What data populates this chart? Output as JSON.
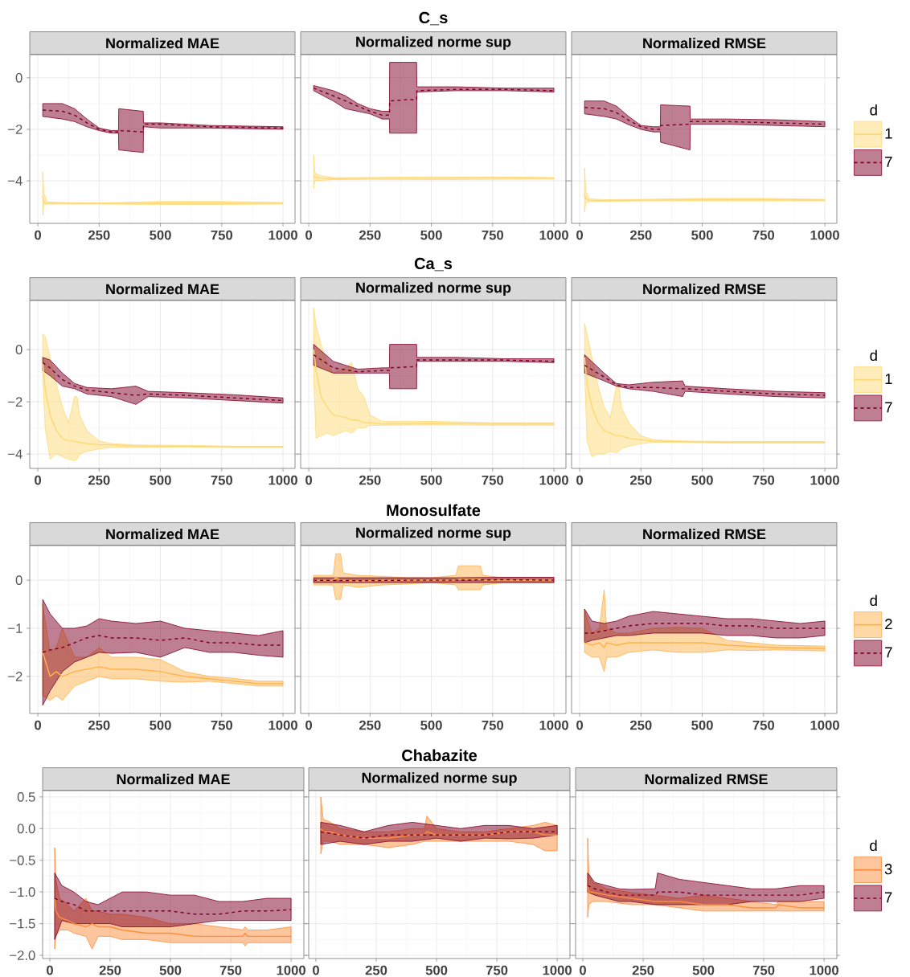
{
  "chart_data": [
    {
      "type": "line",
      "subtitle": "Normalized MAE",
      "xlim": [
        -33,
        1049
      ],
      "ylim": [
        -5.65,
        0.9
      ],
      "xticks": [
        0,
        250,
        500,
        750,
        1000
      ],
      "yticks": [
        0,
        {
          "value": -2,
          "label": "−2"
        },
        {
          "value": -4,
          "label": "−4"
        }
      ],
      "grid": true,
      "series": [
        {
          "color": "#fed976",
          "line_style": "solid",
          "x": [
            20,
            25,
            40,
            100,
            250,
            500,
            750,
            1000
          ],
          "values": [
            -4.6,
            -4.85,
            -4.87,
            -4.87,
            -4.88,
            -4.86,
            -4.86,
            -4.87
          ],
          "lower": [
            -5.35,
            -4.9,
            -4.9,
            -4.9,
            -4.9,
            -4.92,
            -4.92,
            -4.9
          ],
          "upper": [
            -3.65,
            -4.5,
            -4.82,
            -4.84,
            -4.86,
            -4.8,
            -4.8,
            -4.84
          ]
        },
        {
          "color": "#800026",
          "line_style": "dashed",
          "x": [
            20,
            100,
            150,
            200,
            250,
            300,
            329,
            330,
            430,
            431,
            500,
            700,
            1000
          ],
          "values": [
            -1.25,
            -1.3,
            -1.45,
            -1.75,
            -2.0,
            -2.1,
            -2.1,
            -2.05,
            -2.1,
            -1.8,
            -1.8,
            -1.9,
            -1.95
          ],
          "lower": [
            -1.5,
            -1.6,
            -1.7,
            -1.9,
            -2.05,
            -2.15,
            -2.15,
            -2.8,
            -2.9,
            -1.9,
            -1.95,
            -1.95,
            -2.0
          ],
          "upper": [
            -1.0,
            -1.0,
            -1.2,
            -1.6,
            -1.95,
            -2.05,
            -2.05,
            -1.2,
            -1.3,
            -1.75,
            -1.75,
            -1.85,
            -1.9
          ]
        }
      ]
    },
    {
      "type": "line",
      "title": "C_s",
      "subtitle": "Normalized norme sup",
      "xlim": [
        -33,
        1049
      ],
      "ylim": [
        -5.65,
        0.9
      ],
      "xticks": [
        0,
        250,
        500,
        750,
        1000
      ],
      "yticks": [
        0,
        -2,
        -4
      ],
      "grid": true,
      "tick_labels": "x",
      "series": [
        {
          "color": "#fed976",
          "line_style": "solid",
          "x": [
            20,
            25,
            50,
            100,
            250,
            500,
            750,
            1000
          ],
          "values": [
            -3.8,
            -3.85,
            -3.9,
            -3.92,
            -3.9,
            -3.9,
            -3.88,
            -3.9
          ],
          "lower": [
            -4.3,
            -4.0,
            -3.98,
            -3.95,
            -3.94,
            -3.95,
            -3.94,
            -3.93
          ],
          "upper": [
            -3.0,
            -3.7,
            -3.8,
            -3.88,
            -3.87,
            -3.85,
            -3.85,
            -3.87
          ]
        },
        {
          "color": "#800026",
          "line_style": "dashed",
          "x": [
            20,
            100,
            150,
            200,
            250,
            300,
            329,
            330,
            400,
            440,
            441,
            600,
            800,
            1000
          ],
          "values": [
            -0.4,
            -0.7,
            -0.9,
            -1.1,
            -1.3,
            -1.45,
            -1.45,
            -0.9,
            -0.85,
            -0.85,
            -0.5,
            -0.45,
            -0.45,
            -0.5
          ],
          "lower": [
            -0.5,
            -0.9,
            -1.2,
            -1.3,
            -1.4,
            -1.6,
            -1.6,
            -2.15,
            -2.15,
            -2.15,
            -0.55,
            -0.5,
            -0.5,
            -0.55
          ],
          "upper": [
            -0.3,
            -0.5,
            -0.7,
            -1.0,
            -1.2,
            -1.3,
            -1.3,
            0.6,
            0.6,
            0.6,
            -0.35,
            -0.35,
            -0.4,
            -0.4
          ]
        }
      ]
    },
    {
      "type": "line",
      "subtitle": "Normalized RMSE",
      "xlim": [
        -33,
        1049
      ],
      "ylim": [
        -5.65,
        0.9
      ],
      "xticks": [
        0,
        250,
        500,
        750,
        1000
      ],
      "yticks": [
        0,
        -2,
        -4
      ],
      "grid": true,
      "tick_labels": "x",
      "legend": "right",
      "legend_title": "d",
      "series": [
        {
          "name": "1",
          "color": "#fed976",
          "line_style": "solid",
          "x": [
            20,
            25,
            40,
            100,
            250,
            500,
            750,
            1000
          ],
          "values": [
            -4.5,
            -4.7,
            -4.75,
            -4.77,
            -4.75,
            -4.73,
            -4.73,
            -4.75
          ],
          "lower": [
            -5.2,
            -4.85,
            -4.8,
            -4.8,
            -4.78,
            -4.78,
            -4.78,
            -4.78
          ],
          "upper": [
            -3.5,
            -4.4,
            -4.7,
            -4.73,
            -4.72,
            -4.68,
            -4.68,
            -4.72
          ]
        },
        {
          "name": "7",
          "color": "#800026",
          "line_style": "dashed",
          "x": [
            20,
            100,
            150,
            200,
            250,
            300,
            329,
            330,
            450,
            451,
            600,
            800,
            1000
          ],
          "values": [
            -1.15,
            -1.2,
            -1.35,
            -1.65,
            -1.9,
            -2.0,
            -2.0,
            -1.85,
            -1.8,
            -1.7,
            -1.7,
            -1.75,
            -1.8
          ],
          "lower": [
            -1.4,
            -1.5,
            -1.6,
            -1.82,
            -2.0,
            -2.1,
            -2.1,
            -2.5,
            -2.8,
            -1.8,
            -1.8,
            -1.85,
            -1.9
          ],
          "upper": [
            -0.9,
            -0.9,
            -1.1,
            -1.5,
            -1.85,
            -1.9,
            -1.9,
            -1.05,
            -1.1,
            -1.6,
            -1.6,
            -1.63,
            -1.7
          ]
        }
      ]
    },
    {
      "type": "line",
      "subtitle": "Normalized MAE",
      "xlim": [
        -33,
        1049
      ],
      "ylim": [
        -4.55,
        1.88
      ],
      "xticks": [
        0,
        250,
        500,
        750,
        1000
      ],
      "yticks": [
        0,
        {
          "value": -2,
          "label": "−2"
        },
        {
          "value": -4,
          "label": "−4"
        }
      ],
      "grid": true,
      "series": [
        {
          "color": "#fed976",
          "line_style": "solid",
          "x": [
            20,
            30,
            50,
            75,
            100,
            125,
            150,
            160,
            170,
            200,
            250,
            300,
            400,
            600,
            800,
            1000
          ],
          "values": [
            -0.5,
            -1.5,
            -2.5,
            -3.1,
            -3.4,
            -3.5,
            -3.5,
            -3.55,
            -3.55,
            -3.6,
            -3.65,
            -3.65,
            -3.7,
            -3.7,
            -3.72,
            -3.72
          ],
          "lower": [
            -1.0,
            -3.0,
            -4.2,
            -4.0,
            -4.1,
            -4.2,
            -4.25,
            -4.2,
            -4.0,
            -3.9,
            -3.8,
            -3.75,
            -3.75,
            -3.73,
            -3.75,
            -3.75
          ],
          "upper": [
            0.6,
            0.5,
            -0.3,
            -1.3,
            -2.2,
            -2.8,
            -1.8,
            -1.8,
            -2.5,
            -3.1,
            -3.5,
            -3.6,
            -3.65,
            -3.67,
            -3.7,
            -3.7
          ]
        },
        {
          "color": "#800026",
          "line_style": "dashed",
          "x": [
            20,
            50,
            100,
            150,
            200,
            300,
            400,
            450,
            600,
            800,
            1000
          ],
          "values": [
            -0.5,
            -0.7,
            -1.15,
            -1.4,
            -1.55,
            -1.65,
            -1.75,
            -1.7,
            -1.75,
            -1.85,
            -1.95
          ],
          "lower": [
            -0.8,
            -1.0,
            -1.4,
            -1.5,
            -1.7,
            -1.8,
            -2.1,
            -1.8,
            -1.85,
            -1.95,
            -2.05
          ],
          "upper": [
            -0.3,
            -0.4,
            -0.9,
            -1.3,
            -1.45,
            -1.5,
            -1.4,
            -1.6,
            -1.65,
            -1.73,
            -1.85
          ]
        }
      ]
    },
    {
      "type": "line",
      "title": "Ca_s",
      "subtitle": "Normalized norme sup",
      "xlim": [
        -33,
        1049
      ],
      "ylim": [
        -4.55,
        1.88
      ],
      "xticks": [
        0,
        250,
        500,
        750,
        1000
      ],
      "yticks": [
        0,
        -2,
        -4
      ],
      "grid": true,
      "tick_labels": "x",
      "series": [
        {
          "color": "#fed976",
          "line_style": "solid",
          "x": [
            20,
            30,
            50,
            75,
            100,
            150,
            175,
            200,
            225,
            250,
            300,
            500,
            750,
            1000
          ],
          "values": [
            0.0,
            -0.8,
            -1.8,
            -2.2,
            -2.5,
            -2.6,
            -2.7,
            -2.7,
            -2.8,
            -2.8,
            -2.85,
            -2.82,
            -2.85,
            -2.85
          ],
          "lower": [
            -1.0,
            -3.4,
            -3.3,
            -3.2,
            -3.3,
            -3.1,
            -3.2,
            -3.0,
            -3.0,
            -2.9,
            -2.9,
            -2.88,
            -2.9,
            -2.9
          ],
          "upper": [
            1.6,
            0.9,
            0.2,
            -0.5,
            -0.9,
            -0.7,
            -0.5,
            -1.5,
            -1.8,
            -2.5,
            -2.75,
            -2.75,
            -2.8,
            -2.8
          ]
        },
        {
          "color": "#800026",
          "line_style": "dashed",
          "x": [
            20,
            100,
            200,
            300,
            329,
            330,
            440,
            441,
            600,
            800,
            1000
          ],
          "values": [
            -0.2,
            -0.7,
            -0.85,
            -0.8,
            -0.8,
            -0.7,
            -0.65,
            -0.4,
            -0.4,
            -0.4,
            -0.45
          ],
          "lower": [
            -0.6,
            -0.9,
            -0.9,
            -0.9,
            -0.9,
            -1.5,
            -1.5,
            -0.45,
            -0.45,
            -0.45,
            -0.5
          ],
          "upper": [
            0.2,
            -0.45,
            -0.75,
            -0.7,
            -0.7,
            0.2,
            0.2,
            -0.3,
            -0.3,
            -0.35,
            -0.35
          ]
        }
      ]
    },
    {
      "type": "line",
      "subtitle": "Normalized RMSE",
      "xlim": [
        -33,
        1049
      ],
      "ylim": [
        -4.55,
        1.88
      ],
      "xticks": [
        0,
        250,
        500,
        750,
        1000
      ],
      "yticks": [
        0,
        -2,
        -4
      ],
      "grid": true,
      "tick_labels": "x",
      "legend": "right",
      "legend_title": "d",
      "series": [
        {
          "name": "1",
          "color": "#fed976",
          "line_style": "solid",
          "x": [
            20,
            30,
            50,
            75,
            100,
            125,
            150,
            160,
            170,
            200,
            250,
            300,
            400,
            600,
            800,
            1000
          ],
          "values": [
            -0.3,
            -1.3,
            -2.2,
            -2.8,
            -3.1,
            -3.2,
            -3.3,
            -3.3,
            -3.3,
            -3.4,
            -3.45,
            -3.5,
            -3.52,
            -3.55,
            -3.55,
            -3.55
          ],
          "lower": [
            -0.8,
            -3.5,
            -4.1,
            -4.0,
            -4.0,
            -3.9,
            -3.95,
            -3.9,
            -3.8,
            -3.7,
            -3.6,
            -3.55,
            -3.55,
            -3.58,
            -3.58,
            -3.58
          ],
          "upper": [
            1.0,
            0.6,
            -0.3,
            -1.4,
            -2.2,
            -2.6,
            -1.4,
            -1.4,
            -2.2,
            -2.8,
            -3.3,
            -3.45,
            -3.5,
            -3.52,
            -3.52,
            -3.52
          ]
        },
        {
          "name": "7",
          "color": "#800026",
          "line_style": "dashed",
          "x": [
            20,
            100,
            150,
            200,
            300,
            420,
            430,
            600,
            800,
            1000
          ],
          "values": [
            -0.6,
            -1.05,
            -1.35,
            -1.45,
            -1.45,
            -1.5,
            -1.5,
            -1.6,
            -1.7,
            -1.75
          ],
          "lower": [
            -0.9,
            -1.2,
            -1.4,
            -1.5,
            -1.6,
            -1.8,
            -1.6,
            -1.7,
            -1.8,
            -1.85
          ],
          "upper": [
            -0.2,
            -0.9,
            -1.3,
            -1.35,
            -1.25,
            -1.2,
            -1.4,
            -1.5,
            -1.6,
            -1.65
          ]
        }
      ]
    },
    {
      "type": "line",
      "subtitle": "Normalized MAE",
      "xlim": [
        -33,
        1049
      ],
      "ylim": [
        -2.77,
        0.72
      ],
      "xticks": [
        0,
        250,
        500,
        750,
        1000
      ],
      "yticks": [
        0,
        {
          "value": -1,
          "label": "−1"
        },
        {
          "value": -2,
          "label": "−2"
        }
      ],
      "grid": true,
      "series": [
        {
          "color": "#feb24c",
          "line_style": "solid",
          "x": [
            20,
            50,
            75,
            100,
            150,
            200,
            250,
            300,
            400,
            500,
            600,
            700,
            800,
            900,
            1000
          ],
          "values": [
            -1.5,
            -2.0,
            -1.9,
            -2.0,
            -1.9,
            -1.85,
            -1.8,
            -1.85,
            -1.85,
            -1.9,
            -2.0,
            -2.05,
            -2.1,
            -2.15,
            -2.15
          ],
          "lower": [
            -2.4,
            -2.5,
            -2.4,
            -2.5,
            -2.2,
            -2.1,
            -2.0,
            -2.05,
            -2.05,
            -2.1,
            -2.12,
            -2.1,
            -2.15,
            -2.2,
            -2.2
          ],
          "upper": [
            -0.5,
            -1.5,
            -1.4,
            -1.0,
            -1.6,
            -1.6,
            -1.4,
            -1.6,
            -1.6,
            -1.65,
            -1.9,
            -2.0,
            -2.04,
            -2.1,
            -2.1
          ]
        },
        {
          "color": "#800026",
          "line_style": "dashed",
          "x": [
            20,
            50,
            100,
            150,
            200,
            250,
            300,
            400,
            500,
            600,
            700,
            800,
            900,
            1000
          ],
          "values": [
            -1.5,
            -1.45,
            -1.4,
            -1.3,
            -1.2,
            -1.15,
            -1.2,
            -1.2,
            -1.25,
            -1.2,
            -1.3,
            -1.3,
            -1.35,
            -1.35
          ],
          "lower": [
            -2.6,
            -2.3,
            -1.9,
            -1.7,
            -1.6,
            -1.5,
            -1.52,
            -1.5,
            -1.6,
            -1.4,
            -1.5,
            -1.5,
            -1.56,
            -1.6
          ],
          "upper": [
            -0.4,
            -0.7,
            -1.0,
            -1.0,
            -0.95,
            -0.8,
            -0.85,
            -0.9,
            -0.85,
            -1.0,
            -1.05,
            -1.1,
            -1.15,
            -1.05
          ]
        }
      ]
    },
    {
      "type": "line",
      "title": "Monosulfate",
      "subtitle": "Normalized norme sup",
      "xlim": [
        -33,
        1049
      ],
      "ylim": [
        -2.77,
        0.72
      ],
      "xticks": [
        0,
        250,
        500,
        750,
        1000
      ],
      "yticks": [
        0,
        -1,
        -2
      ],
      "grid": true,
      "tick_labels": "x",
      "series": [
        {
          "color": "#feb24c",
          "line_style": "solid",
          "x": [
            20,
            100,
            110,
            130,
            140,
            200,
            300,
            400,
            500,
            600,
            610,
            700,
            710,
            800,
            900,
            1000
          ],
          "values": [
            0,
            0,
            0.05,
            0,
            0,
            -0.02,
            0,
            0,
            0,
            0,
            0.02,
            0.02,
            0,
            0,
            0,
            0
          ],
          "lower": [
            -0.1,
            -0.1,
            -0.4,
            -0.4,
            -0.1,
            -0.15,
            -0.1,
            -0.08,
            -0.05,
            -0.1,
            -0.2,
            -0.2,
            -0.1,
            -0.05,
            -0.05,
            -0.05
          ],
          "upper": [
            0.1,
            0.1,
            0.55,
            0.55,
            0.15,
            0.1,
            0.08,
            0.05,
            0.05,
            0.1,
            0.3,
            0.3,
            0.1,
            0.05,
            0.05,
            0.05
          ]
        },
        {
          "color": "#800026",
          "line_style": "dashed",
          "x": [
            20,
            200,
            400,
            600,
            800,
            1000
          ],
          "values": [
            0,
            -0.01,
            0,
            0,
            0.01,
            0
          ],
          "lower": [
            -0.05,
            -0.05,
            -0.05,
            -0.05,
            -0.05,
            -0.05
          ],
          "upper": [
            0.05,
            0.05,
            0.05,
            0.05,
            0.06,
            0.06
          ]
        }
      ]
    },
    {
      "type": "line",
      "subtitle": "Normalized RMSE",
      "xlim": [
        -33,
        1049
      ],
      "ylim": [
        -2.77,
        0.72
      ],
      "xticks": [
        0,
        250,
        500,
        750,
        1000
      ],
      "yticks": [
        0,
        -1,
        -2
      ],
      "grid": true,
      "tick_labels": "x",
      "legend": "right",
      "legend_title": "d",
      "series": [
        {
          "name": "2",
          "color": "#feb24c",
          "line_style": "solid",
          "x": [
            20,
            50,
            80,
            100,
            110,
            150,
            200,
            300,
            400,
            500,
            600,
            700,
            800,
            1000
          ],
          "values": [
            -1.3,
            -1.35,
            -1.3,
            -1.4,
            -1.3,
            -1.35,
            -1.3,
            -1.3,
            -1.3,
            -1.3,
            -1.35,
            -1.38,
            -1.4,
            -1.42
          ],
          "lower": [
            -1.5,
            -1.6,
            -1.6,
            -1.9,
            -1.6,
            -1.6,
            -1.5,
            -1.45,
            -1.5,
            -1.5,
            -1.45,
            -1.46,
            -1.45,
            -1.47
          ],
          "upper": [
            -0.6,
            -1.1,
            -1.0,
            -0.2,
            -1.0,
            -1.1,
            -1.1,
            -1.0,
            -0.98,
            -1.0,
            -1.25,
            -1.3,
            -1.35,
            -1.37
          ]
        },
        {
          "name": "7",
          "color": "#800026",
          "line_style": "dashed",
          "x": [
            20,
            50,
            100,
            150,
            200,
            300,
            400,
            500,
            600,
            700,
            800,
            900,
            1000
          ],
          "values": [
            -1.1,
            -1.1,
            -1.05,
            -1.0,
            -0.95,
            -0.9,
            -0.9,
            -0.9,
            -0.95,
            -0.95,
            -1.0,
            -1.0,
            -1.0
          ],
          "lower": [
            -1.3,
            -1.25,
            -1.2,
            -1.15,
            -1.15,
            -1.1,
            -1.1,
            -1.1,
            -1.15,
            -1.15,
            -1.2,
            -1.2,
            -1.15
          ],
          "upper": [
            -0.6,
            -0.85,
            -0.9,
            -0.85,
            -0.75,
            -0.65,
            -0.7,
            -0.75,
            -0.8,
            -0.8,
            -0.85,
            -0.9,
            -0.85
          ]
        }
      ]
    },
    {
      "type": "line",
      "subtitle": "Normalized MAE",
      "xlim": [
        -30,
        1053
      ],
      "ylim": [
        -2.05,
        0.6
      ],
      "xticks": [
        0,
        250,
        500,
        750,
        1000
      ],
      "yticks": [
        {
          "value": 0.5,
          "label": "0.5"
        },
        {
          "value": 0,
          "label": "0.0"
        },
        {
          "value": -0.5,
          "label": "−0.5"
        },
        {
          "value": -1,
          "label": "−1.0"
        },
        {
          "value": -1.5,
          "label": "−1.5"
        },
        {
          "value": -2,
          "label": "−2.0"
        }
      ],
      "grid": true,
      "series": [
        {
          "color": "#fd8d3c",
          "line_style": "solid",
          "x": [
            20,
            25,
            40,
            75,
            100,
            150,
            175,
            200,
            250,
            300,
            400,
            500,
            600,
            700,
            800,
            810,
            820,
            900,
            1000
          ],
          "values": [
            -1.1,
            -1.3,
            -1.4,
            -1.45,
            -1.5,
            -1.55,
            -1.5,
            -1.55,
            -1.55,
            -1.6,
            -1.65,
            -1.65,
            -1.7,
            -1.7,
            -1.7,
            -1.65,
            -1.7,
            -1.7,
            -1.7
          ],
          "lower": [
            -1.9,
            -1.7,
            -1.6,
            -1.6,
            -1.65,
            -1.7,
            -1.9,
            -1.7,
            -1.7,
            -1.75,
            -1.75,
            -1.8,
            -1.8,
            -1.8,
            -1.8,
            -1.85,
            -1.8,
            -1.8,
            -1.8
          ],
          "upper": [
            -0.3,
            -0.8,
            -1.1,
            -1.2,
            -1.3,
            -1.1,
            -1.3,
            -1.3,
            -1.35,
            -1.35,
            -1.4,
            -1.5,
            -1.5,
            -1.55,
            -1.6,
            -1.55,
            -1.6,
            -1.6,
            -1.55
          ]
        },
        {
          "color": "#800026",
          "line_style": "dashed",
          "x": [
            20,
            50,
            100,
            150,
            200,
            250,
            300,
            400,
            500,
            600,
            700,
            800,
            900,
            1000
          ],
          "values": [
            -1.1,
            -1.15,
            -1.2,
            -1.3,
            -1.3,
            -1.3,
            -1.3,
            -1.3,
            -1.3,
            -1.35,
            -1.35,
            -1.3,
            -1.3,
            -1.28
          ],
          "lower": [
            -1.75,
            -1.45,
            -1.5,
            -1.5,
            -1.5,
            -1.5,
            -1.55,
            -1.55,
            -1.55,
            -1.5,
            -1.45,
            -1.45,
            -1.45,
            -1.45
          ],
          "upper": [
            -0.7,
            -0.9,
            -1.0,
            -1.15,
            -1.2,
            -1.1,
            -1.0,
            -1.0,
            -1.05,
            -1.05,
            -1.15,
            -1.15,
            -1.1,
            -1.1
          ]
        }
      ]
    },
    {
      "type": "line",
      "title": "Chabazite",
      "subtitle": "Normalized norme sup",
      "xlim": [
        -30,
        1053
      ],
      "ylim": [
        -2.05,
        0.6
      ],
      "xticks": [
        0,
        250,
        500,
        750,
        1000
      ],
      "yticks": [
        0.5,
        0,
        -0.5,
        -1,
        -1.5,
        -2
      ],
      "grid": true,
      "tick_labels": "x",
      "series": [
        {
          "color": "#fd8d3c",
          "line_style": "solid",
          "x": [
            20,
            30,
            60,
            100,
            200,
            300,
            400,
            450,
            460,
            500,
            600,
            700,
            800,
            900,
            950,
            1000
          ],
          "values": [
            0.0,
            -0.05,
            -0.05,
            -0.1,
            -0.15,
            -0.15,
            -0.1,
            -0.1,
            -0.05,
            -0.1,
            -0.1,
            -0.1,
            -0.05,
            -0.05,
            -0.1,
            -0.1
          ],
          "lower": [
            -0.4,
            -0.2,
            -0.2,
            -0.25,
            -0.25,
            -0.3,
            -0.25,
            -0.2,
            -0.2,
            -0.2,
            -0.2,
            -0.2,
            -0.2,
            -0.25,
            -0.35,
            -0.35
          ],
          "upper": [
            0.5,
            0.15,
            0.1,
            0.0,
            -0.05,
            -0.05,
            0.0,
            0.0,
            0.2,
            0.0,
            -0.05,
            -0.05,
            0.0,
            0.05,
            0.1,
            0.05
          ]
        },
        {
          "color": "#800026",
          "line_style": "dashed",
          "x": [
            20,
            100,
            200,
            300,
            400,
            500,
            600,
            700,
            800,
            900,
            1000
          ],
          "values": [
            -0.05,
            -0.1,
            -0.15,
            -0.1,
            -0.1,
            -0.1,
            -0.1,
            -0.1,
            -0.05,
            -0.05,
            -0.05
          ],
          "lower": [
            -0.25,
            -0.2,
            -0.25,
            -0.2,
            -0.2,
            -0.15,
            -0.2,
            -0.15,
            -0.16,
            -0.15,
            -0.1
          ],
          "upper": [
            0.1,
            0.05,
            -0.05,
            0.05,
            0.1,
            0.05,
            0.0,
            0.05,
            0.05,
            0.0,
            0.05
          ]
        }
      ]
    },
    {
      "type": "line",
      "subtitle": "Normalized RMSE",
      "xlim": [
        -30,
        1053
      ],
      "ylim": [
        -2.05,
        0.6
      ],
      "xticks": [
        0,
        250,
        500,
        750,
        1000
      ],
      "yticks": [
        0.5,
        0,
        -0.5,
        -1,
        -1.5,
        -2
      ],
      "grid": true,
      "tick_labels": "x",
      "legend": "right",
      "legend_title": "d",
      "series": [
        {
          "name": "3",
          "color": "#fd8d3c",
          "line_style": "solid",
          "x": [
            20,
            25,
            40,
            100,
            200,
            300,
            400,
            500,
            600,
            700,
            800,
            810,
            900,
            1000
          ],
          "values": [
            -0.9,
            -1.0,
            -1.0,
            -1.05,
            -1.1,
            -1.15,
            -1.15,
            -1.2,
            -1.2,
            -1.25,
            -1.25,
            -1.2,
            -1.25,
            -1.25
          ],
          "lower": [
            -1.4,
            -1.2,
            -1.15,
            -1.15,
            -1.2,
            -1.2,
            -1.25,
            -1.3,
            -1.3,
            -1.3,
            -1.3,
            -1.3,
            -1.3,
            -1.3
          ],
          "upper": [
            -0.15,
            -0.7,
            -0.85,
            -0.95,
            -1.01,
            -1.05,
            -1.1,
            -1.05,
            -1.1,
            -1.15,
            -1.2,
            -1.15,
            -1.15,
            -1.15
          ]
        },
        {
          "name": "7",
          "color": "#800026",
          "line_style": "dashed",
          "x": [
            20,
            50,
            100,
            150,
            200,
            300,
            310,
            400,
            500,
            600,
            700,
            800,
            900,
            1000
          ],
          "values": [
            -0.9,
            -0.95,
            -1.0,
            -1.05,
            -1.05,
            -1.05,
            -1.0,
            -1.0,
            -1.05,
            -1.05,
            -1.05,
            -1.05,
            -1.05,
            -1.0
          ],
          "lower": [
            -1.0,
            -1.05,
            -1.1,
            -1.15,
            -1.15,
            -1.2,
            -1.2,
            -1.2,
            -1.2,
            -1.2,
            -1.15,
            -1.15,
            -1.15,
            -1.1
          ],
          "upper": [
            -0.7,
            -0.85,
            -0.9,
            -0.95,
            -0.96,
            -0.95,
            -0.7,
            -0.8,
            -0.85,
            -0.9,
            -0.95,
            -0.95,
            -0.9,
            -0.9
          ]
        }
      ]
    }
  ]
}
